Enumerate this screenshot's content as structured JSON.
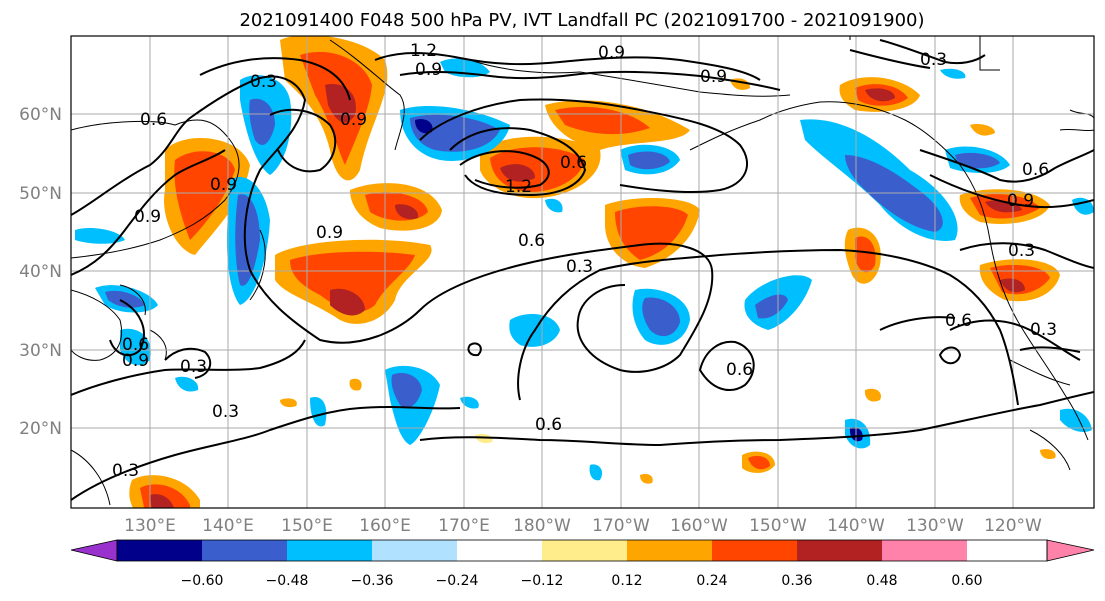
{
  "title": "2021091400 F048 500 hPa PV, IVT Landfall PC (2021091700 - 2021091900)",
  "map": {
    "lat_labels": [
      "60°N",
      "50°N",
      "40°N",
      "30°N",
      "20°N"
    ],
    "lon_labels": [
      "130°E",
      "140°E",
      "150°E",
      "160°E",
      "170°E",
      "180°W",
      "170°W",
      "160°W",
      "150°W",
      "140°W",
      "130°W",
      "120°W"
    ],
    "contour_labels": [
      "1.2",
      "0.9",
      "0.9",
      "0.9",
      "0.3",
      "0.3",
      "0.6",
      "0.9",
      "0.9",
      "0.9",
      "1.2",
      "0.6",
      "0.9",
      "0.6",
      "0.3",
      "0.9",
      "0.3",
      "0.3",
      "0.6",
      "0.6",
      "0.6",
      "0.3",
      "0.6",
      "0.3",
      "0.6",
      "0.9",
      "0.3"
    ]
  },
  "colorbar": {
    "tick_labels": [
      "−0.60",
      "−0.48",
      "−0.36",
      "−0.24",
      "−0.12",
      "0.12",
      "0.24",
      "0.36",
      "0.48",
      "0.60"
    ],
    "colors": [
      "#9932cc",
      "#00008b",
      "#3a5fcd",
      "#00bfff",
      "#b0e2ff",
      "#ffffff",
      "#ffec8b",
      "#ffa500",
      "#ff4500",
      "#b22222",
      "#ff82ab"
    ]
  }
}
